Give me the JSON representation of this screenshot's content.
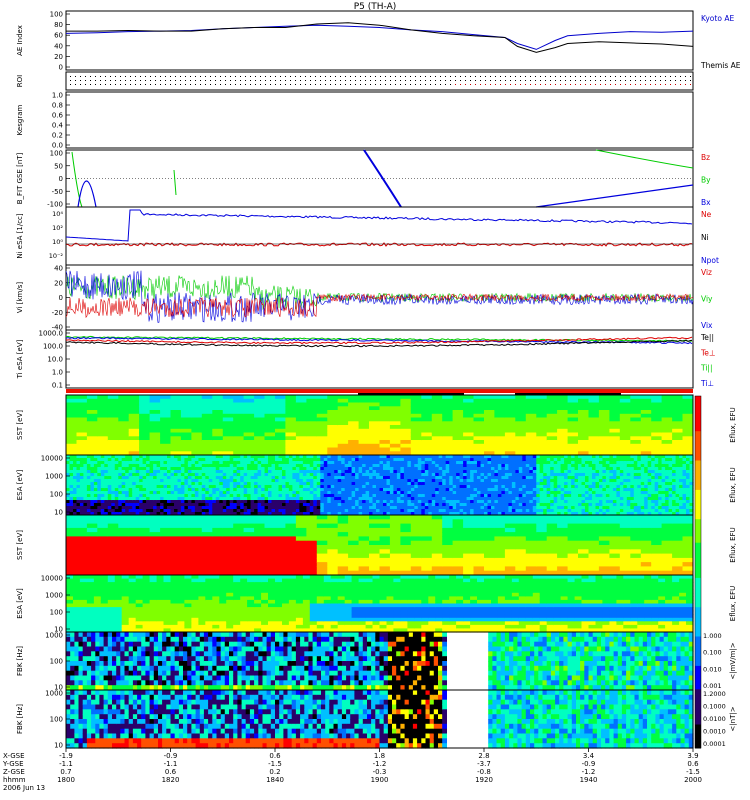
{
  "title": "P5 (TH-A)",
  "colors": {
    "kyoto": "#0000cc",
    "themis": "#000000",
    "red": "#dd0000",
    "green": "#00cc00",
    "blue": "#0000dd",
    "black": "#000000"
  },
  "chart_data": [
    {
      "type": "line",
      "ylabel": "AE Index",
      "yticks": [
        "100",
        "80",
        "60",
        "40",
        "20",
        "0"
      ],
      "ylim": [
        0,
        100
      ],
      "legend": [
        {
          "name": "Kyoto AE",
          "color": "#0000cc"
        },
        {
          "name": "Themis AE",
          "color": "#000000"
        }
      ],
      "series": [
        {
          "name": "Kyoto AE",
          "color": "#0000cc",
          "x": [
            0,
            0.05,
            0.1,
            0.15,
            0.2,
            0.25,
            0.3,
            0.35,
            0.4,
            0.45,
            0.5,
            0.55,
            0.6,
            0.65,
            0.7,
            0.72,
            0.75,
            0.78,
            0.8,
            0.85,
            0.9,
            0.95,
            1.0
          ],
          "values": [
            62,
            63,
            65,
            66,
            67,
            70,
            72,
            74,
            76,
            74,
            72,
            68,
            65,
            60,
            55,
            45,
            35,
            50,
            58,
            62,
            65,
            64,
            66
          ]
        },
        {
          "name": "Themis AE",
          "color": "#000000",
          "x": [
            0,
            0.05,
            0.1,
            0.15,
            0.2,
            0.25,
            0.3,
            0.35,
            0.4,
            0.45,
            0.5,
            0.55,
            0.6,
            0.65,
            0.7,
            0.72,
            0.75,
            0.78,
            0.8,
            0.85,
            0.9,
            0.95,
            1.0
          ],
          "values": [
            66,
            66,
            67,
            66,
            66,
            70,
            72,
            72,
            78,
            80,
            76,
            68,
            62,
            58,
            55,
            40,
            30,
            38,
            45,
            48,
            46,
            44,
            40
          ]
        }
      ]
    },
    {
      "type": "scatter",
      "ylabel": "ROI"
    },
    {
      "type": "scatter",
      "ylabel": "Kesgram",
      "yticks": [
        "1.0",
        "0.8",
        "0.6",
        "0.4",
        "0.2",
        "0.0"
      ],
      "ylim": [
        0,
        1
      ]
    },
    {
      "type": "line",
      "ylabel": "B_FIT GSE [nT]",
      "yticks": [
        "100",
        "50",
        "0",
        "-50",
        "-100"
      ],
      "ylim": [
        -100,
        100
      ],
      "legend": [
        {
          "name": "Bz",
          "color": "#dd0000"
        },
        {
          "name": "By",
          "color": "#00cc00"
        },
        {
          "name": "Bx",
          "color": "#0000dd"
        }
      ]
    },
    {
      "type": "line",
      "ylabel": "Ni eSA [1/cc]",
      "legend": [
        {
          "name": "Ne",
          "color": "#dd0000"
        },
        {
          "name": "Ni",
          "color": "#000000"
        },
        {
          "name": "Npot",
          "color": "#0000dd"
        }
      ]
    },
    {
      "type": "line",
      "ylabel": "Vi [km/s]",
      "yticks": [
        "40",
        "20",
        "0",
        "-20",
        "-40"
      ],
      "ylim": [
        -50,
        50
      ],
      "legend": [
        {
          "name": "Viz",
          "color": "#dd0000"
        },
        {
          "name": "Viy",
          "color": "#00cc00"
        },
        {
          "name": "Vix",
          "color": "#0000dd"
        }
      ]
    },
    {
      "type": "line",
      "ylabel": "Ti eSA [eV]",
      "yticks": [
        "1000.0",
        "100.0",
        "10.0",
        "1.0",
        "0.1"
      ],
      "legend": [
        {
          "name": "Te||",
          "color": "#000000"
        },
        {
          "name": "Te⊥",
          "color": "#dd0000"
        },
        {
          "name": "Ti||",
          "color": "#00cc00"
        },
        {
          "name": "Ti⊥",
          "color": "#0000dd"
        }
      ]
    },
    {
      "type": "heatmap",
      "ylabel": "SST [eV]",
      "colorbar": "Eflux, EFU"
    },
    {
      "type": "heatmap",
      "ylabel": "ESA [eV]",
      "yticks": [
        "10000",
        "1000",
        "100",
        "10"
      ],
      "colorbar": "Eflux, EFU"
    },
    {
      "type": "heatmap",
      "ylabel": "SST [eV]",
      "colorbar": "Eflux, EFU"
    },
    {
      "type": "heatmap",
      "ylabel": "ESA [eV]",
      "yticks": [
        "10000",
        "1000",
        "100",
        "10"
      ],
      "colorbar": "Eflux, EFU"
    },
    {
      "type": "heatmap",
      "ylabel": "FBK [Hz]",
      "yticks": [
        "1000",
        "100",
        "10"
      ],
      "colorbar": "<|mV/m|>",
      "cbticks": [
        "1.000",
        "0.100",
        "0.010",
        "0.001"
      ]
    },
    {
      "type": "heatmap",
      "ylabel": "FBK [Hz]",
      "yticks": [
        "1000",
        "100",
        "10"
      ],
      "colorbar": "<|nT|>",
      "cbticks": [
        "1.2000",
        "0.1000",
        "0.0100",
        "0.0010",
        "0.0001"
      ]
    }
  ],
  "xaxis": {
    "row_labels": [
      "X-GSE",
      "Y-GSE",
      "Z-GSE",
      "hhmm",
      "2006 Jun 13"
    ],
    "columns": [
      [
        "-1.9",
        "-1.1",
        "0.7",
        "1800"
      ],
      [
        "-0.9",
        "-1.1",
        "0.6",
        "1820"
      ],
      [
        "0.6",
        "-1.5",
        "0.2",
        "1840"
      ],
      [
        "1.8",
        "-1.2",
        "-0.3",
        "1900"
      ],
      [
        "2.8",
        "-3.7",
        "-0.8",
        "1920"
      ],
      [
        "3.4",
        "-0.9",
        "-1.2",
        "1940"
      ],
      [
        "3.9",
        "0.6",
        "-1.5",
        "2000"
      ]
    ]
  }
}
